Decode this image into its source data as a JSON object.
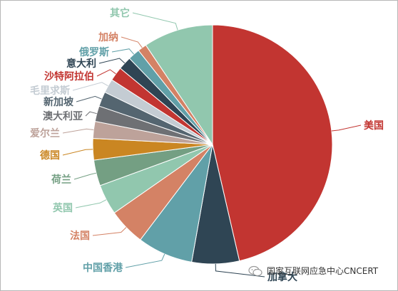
{
  "chart_data": {
    "type": "pie",
    "title": "",
    "slices": [
      {
        "label": "美国",
        "value": 46.4,
        "color": "#c23531"
      },
      {
        "label": "加拿大",
        "value": 6.4,
        "color": "#2f4554"
      },
      {
        "label": "中国香港",
        "value": 7.5,
        "color": "#61a0a8"
      },
      {
        "label": "法国",
        "value": 5.0,
        "color": "#d48265"
      },
      {
        "label": "英国",
        "value": 4.1,
        "color": "#91c7ae"
      },
      {
        "label": "荷兰",
        "value": 3.5,
        "color": "#749f83"
      },
      {
        "label": "德国",
        "value": 2.9,
        "color": "#ca8622"
      },
      {
        "label": "爱尔兰",
        "value": 2.3,
        "color": "#bda29a"
      },
      {
        "label": "澳大利亚",
        "value": 2.1,
        "color": "#6e7074"
      },
      {
        "label": "新加坡",
        "value": 2.0,
        "color": "#546570"
      },
      {
        "label": "毛里求斯",
        "value": 1.9,
        "color": "#c4ccd3"
      },
      {
        "label": "沙特阿拉伯",
        "value": 1.9,
        "color": "#c23531"
      },
      {
        "label": "意大利",
        "value": 1.8,
        "color": "#2f4554"
      },
      {
        "label": "俄罗斯",
        "value": 1.6,
        "color": "#61a0a8"
      },
      {
        "label": "加纳",
        "value": 1.2,
        "color": "#d48265"
      },
      {
        "label": "其它",
        "value": 9.4,
        "color": "#91c7ae"
      }
    ]
  },
  "watermark": {
    "text": "国家互联网应急中心CNCERT",
    "icon": "wechat-icon"
  }
}
